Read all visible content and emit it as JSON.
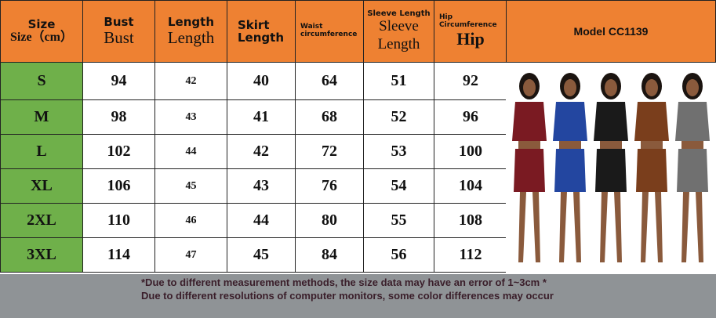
{
  "header": {
    "size": "Size",
    "size_cm": "Size（cm）",
    "bust": "Bust",
    "bust2": "Bust",
    "length": "Length",
    "length2": "Length",
    "skirt": "Skirt Length",
    "waist": "Waist circumference",
    "sleeve": "Sleeve Length",
    "sleeve2": "Sleeve Length",
    "hip": "Hip Circumference",
    "hip2": "Hip",
    "model": "Model CC1139"
  },
  "rows": [
    [
      "S",
      "94",
      "42",
      "40",
      "64",
      "51",
      "92"
    ],
    [
      "M",
      "98",
      "43",
      "41",
      "68",
      "52",
      "96"
    ],
    [
      "L",
      "102",
      "44",
      "42",
      "72",
      "53",
      "100"
    ],
    [
      "XL",
      "106",
      "45",
      "43",
      "76",
      "54",
      "104"
    ],
    [
      "2XL",
      "110",
      "46",
      "44",
      "80",
      "55",
      "108"
    ],
    [
      "3XL",
      "114",
      "47",
      "45",
      "84",
      "56",
      "112"
    ]
  ],
  "models": [
    "#7a1a22",
    "#2346a0",
    "#1a1a1a",
    "#7a3e1c",
    "#707070"
  ],
  "footer": {
    "line1": "*Due to different measurement methods, the size data may have an error of 1~3cm *",
    "line2": "Due to different resolutions of computer monitors, some color differences may occur"
  }
}
